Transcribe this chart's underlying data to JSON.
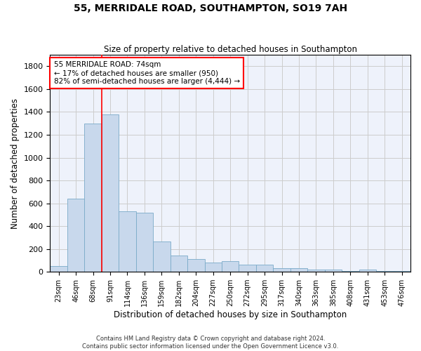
{
  "title": "55, MERRIDALE ROAD, SOUTHAMPTON, SO19 7AH",
  "subtitle": "Size of property relative to detached houses in Southampton",
  "xlabel": "Distribution of detached houses by size in Southampton",
  "ylabel": "Number of detached properties",
  "categories": [
    "23sqm",
    "46sqm",
    "68sqm",
    "91sqm",
    "114sqm",
    "136sqm",
    "159sqm",
    "182sqm",
    "204sqm",
    "227sqm",
    "250sqm",
    "272sqm",
    "295sqm",
    "317sqm",
    "340sqm",
    "363sqm",
    "385sqm",
    "408sqm",
    "431sqm",
    "453sqm",
    "476sqm"
  ],
  "values": [
    50,
    640,
    1300,
    1380,
    530,
    520,
    265,
    145,
    115,
    80,
    95,
    65,
    65,
    35,
    35,
    20,
    20,
    5,
    20,
    5,
    5
  ],
  "bar_color": "#c8d8ec",
  "bar_edge_color": "#7aaac8",
  "vline_x_index": 2,
  "vline_color": "red",
  "annotation_text": "55 MERRIDALE ROAD: 74sqm\n← 17% of detached houses are smaller (950)\n82% of semi-detached houses are larger (4,444) →",
  "annotation_box_color": "white",
  "annotation_box_edge_color": "red",
  "ylim": [
    0,
    1900
  ],
  "yticks": [
    0,
    200,
    400,
    600,
    800,
    1000,
    1200,
    1400,
    1600,
    1800
  ],
  "grid_color": "#cccccc",
  "background_color": "#eef2fb",
  "footer1": "Contains HM Land Registry data © Crown copyright and database right 2024.",
  "footer2": "Contains public sector information licensed under the Open Government Licence v3.0."
}
